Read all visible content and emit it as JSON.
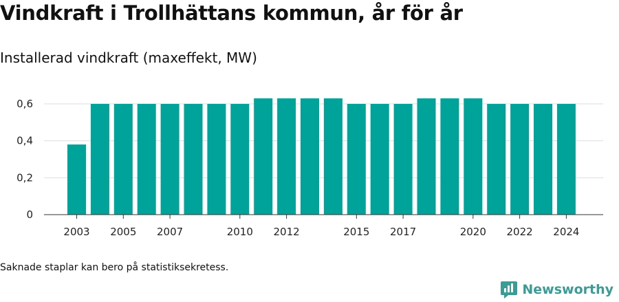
{
  "title": "Vindkraft i Trollhättans kommun, år för år",
  "subtitle": "Installerad vindkraft (maxeffekt, MW)",
  "footnote": "Saknade staplar kan bero på statistiksekretess.",
  "brand": "Newsworthy",
  "colors": {
    "bar": "#00a39a",
    "grid": "#dddddd",
    "axis": "#333333",
    "brand": "#3a9c95"
  },
  "chart_data": {
    "type": "bar",
    "title": "Vindkraft i Trollhättans kommun, år för år",
    "subtitle": "Installerad vindkraft (maxeffekt, MW)",
    "xlabel": "",
    "ylabel": "",
    "categories": [
      "2003",
      "2004",
      "2005",
      "2006",
      "2007",
      "2008",
      "2009",
      "2010",
      "2011",
      "2012",
      "2013",
      "2014",
      "2015",
      "2016",
      "2017",
      "2018",
      "2019",
      "2020",
      "2021",
      "2022",
      "2023",
      "2024"
    ],
    "values": [
      0.38,
      0.6,
      0.6,
      0.6,
      0.6,
      0.6,
      0.6,
      0.6,
      0.63,
      0.63,
      0.63,
      0.63,
      0.6,
      0.6,
      0.6,
      0.63,
      0.63,
      0.63,
      0.6,
      0.6,
      0.6,
      0.6
    ],
    "x_tick_labels": [
      "2003",
      "2005",
      "2007",
      "2010",
      "2012",
      "2015",
      "2017",
      "2020",
      "2022",
      "2024"
    ],
    "y_ticks": [
      0,
      0.2,
      0.4,
      0.6
    ],
    "y_tick_labels": [
      "0",
      "0,2",
      "0,4",
      "0,6"
    ],
    "ylim": [
      0,
      0.6
    ],
    "grid": true,
    "legend": "none"
  }
}
